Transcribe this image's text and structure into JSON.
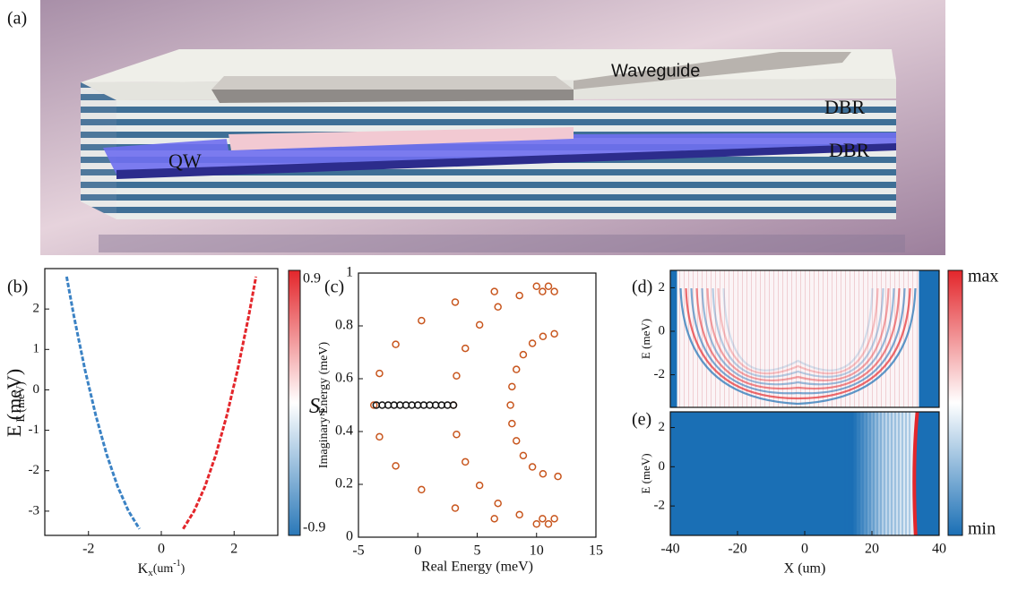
{
  "panel_labels": [
    "(a)",
    "(b)",
    "(c)",
    "(d)",
    "(e)"
  ],
  "diagram": {
    "labels": [
      "Waveguide",
      "DBR",
      "DBR",
      "QW"
    ]
  },
  "chart_data": [
    {
      "type": "line",
      "xlim": [
        -3.2,
        3.2
      ],
      "ylim": [
        -3.6,
        3
      ],
      "xticks": [
        -2,
        0,
        2
      ],
      "yticks": [
        -3,
        -2,
        -1,
        0,
        1,
        2
      ],
      "xlabel": {
        "main": "K",
        "sub": "x",
        "unit": "(um",
        "sup": "-1",
        "close": ")"
      },
      "ylabel": "E (meV)",
      "series": [
        {
          "color": "#3b82c4",
          "x": [
            -2.6,
            -2.4,
            -2.1,
            -1.8,
            -1.5,
            -1.2,
            -0.9,
            -0.6
          ],
          "values": [
            2.8,
            1.82,
            0.51,
            -0.63,
            -1.6,
            -2.39,
            -3.0,
            -3.44
          ]
        },
        {
          "color": "#e3262b",
          "x": [
            0.6,
            0.9,
            1.2,
            1.5,
            1.8,
            2.1,
            2.4,
            2.6
          ],
          "values": [
            -3.44,
            -3.0,
            -2.39,
            -1.6,
            -0.63,
            0.51,
            1.82,
            2.8
          ]
        }
      ],
      "colorbar": {
        "colors": [
          "#e3262b",
          "#ffffff",
          "#2a78b8"
        ],
        "lim": [
          -0.9,
          0.9
        ],
        "ticks": [
          0.9,
          -0.9
        ],
        "label": {
          "main": "S",
          "sub": "z"
        }
      }
    },
    {
      "type": "scatter",
      "xlim": [
        -5,
        15
      ],
      "ylim": [
        0,
        1
      ],
      "xticks": [
        -5,
        0,
        5,
        10,
        15
      ],
      "yticks": [
        0,
        0.2,
        0.4,
        0.6,
        0.8,
        1
      ],
      "xlabel": "Real Energy (meV)",
      "ylabel": "Imaginary Energy (meV)",
      "series": [
        {
          "color": "#c8561e",
          "x": [
            11,
            10,
            6.45,
            3.15,
            0.31,
            -1.86,
            -3.23,
            -3.7,
            -3.23,
            -1.86,
            0.31,
            3.15,
            6.45,
            10,
            11
          ],
          "values": [
            0.95,
            0.95,
            0.93,
            0.89,
            0.82,
            0.73,
            0.62,
            0.5,
            0.38,
            0.27,
            0.18,
            0.11,
            0.07,
            0.05,
            0.05
          ]
        },
        {
          "color": "#c8561e",
          "x": [
            11.5,
            10.5,
            8.56,
            6.75,
            5.2,
            4.0,
            3.26,
            3.0,
            3.26,
            4.0,
            5.2,
            6.75,
            8.56,
            10.5,
            11.5
          ],
          "values": [
            0.93,
            0.93,
            0.915,
            0.872,
            0.804,
            0.715,
            0.611,
            0.5,
            0.389,
            0.285,
            0.196,
            0.128,
            0.085,
            0.07,
            0.07
          ]
        },
        {
          "color": "#c8561e",
          "x": [
            11.5,
            10.54,
            9.65,
            8.88,
            8.3,
            7.93,
            7.8,
            7.93,
            8.3,
            8.88,
            9.65,
            10.54,
            11.8
          ],
          "values": [
            0.77,
            0.76,
            0.734,
            0.691,
            0.635,
            0.57,
            0.5,
            0.43,
            0.365,
            0.309,
            0.266,
            0.24,
            0.23
          ]
        },
        {
          "color": "#111111",
          "x": [
            -3.5,
            -3,
            -2.5,
            -2,
            -1.5,
            -1,
            -0.5,
            0,
            0.5,
            1,
            1.5,
            2,
            2.5,
            3
          ],
          "values": [
            0.5,
            0.5,
            0.5,
            0.5,
            0.5,
            0.5,
            0.5,
            0.5,
            0.5,
            0.5,
            0.5,
            0.5,
            0.5,
            0.5
          ]
        }
      ]
    },
    {
      "type": "heatmap",
      "variant": "standing",
      "xlim": [
        -40,
        40
      ],
      "ylim": [
        -3.5,
        2.8
      ],
      "yticks": [
        -2,
        0,
        2
      ],
      "ylabel": "E (meV)"
    },
    {
      "type": "heatmap",
      "variant": "edge",
      "xlim": [
        -40,
        40
      ],
      "ylim": [
        -3.5,
        2.8
      ],
      "xticks": [
        -40,
        -20,
        0,
        20,
        40
      ],
      "yticks": [
        -2,
        0,
        2
      ],
      "ylabel": "E (meV)",
      "xlabel": "X (um)",
      "colorbar": {
        "colors": [
          "#e3262b",
          "#ffffff",
          "#1a6fb5"
        ],
        "labels": [
          "max",
          "min"
        ]
      }
    }
  ]
}
